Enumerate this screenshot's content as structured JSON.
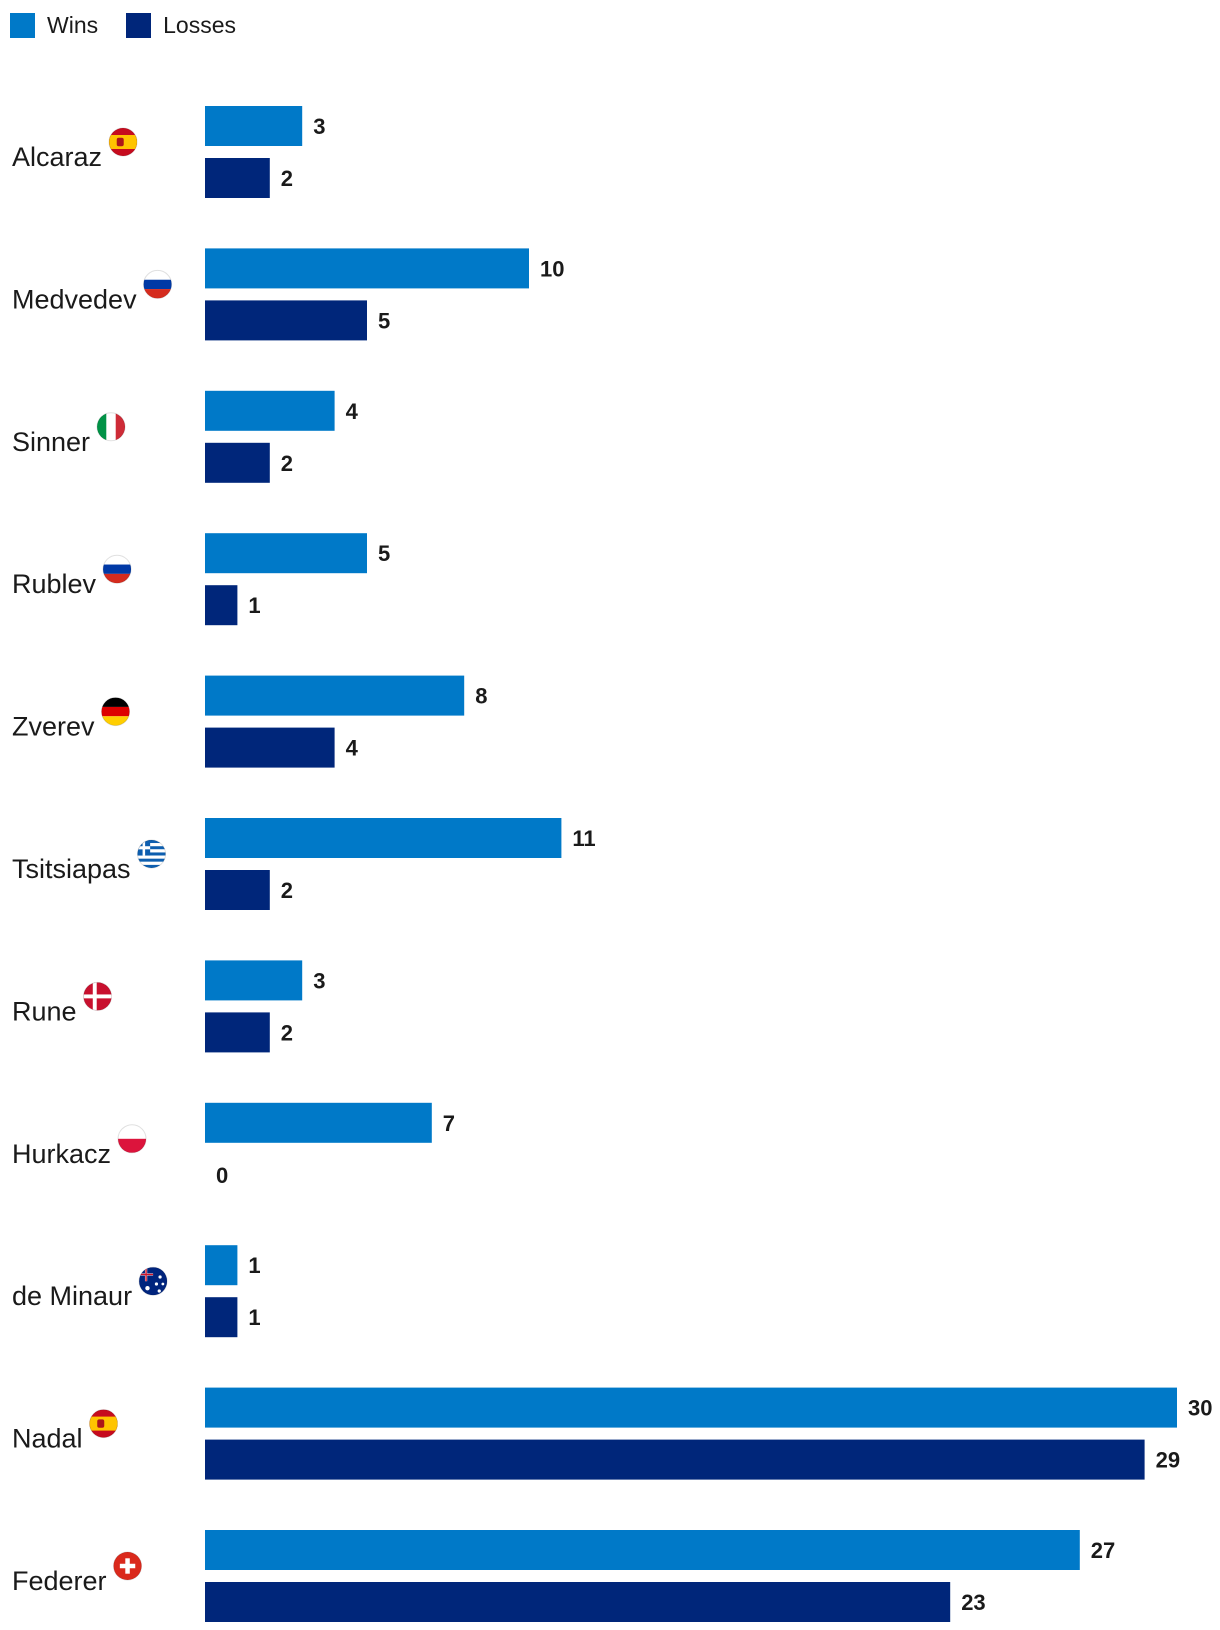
{
  "colors": {
    "wins": "#0079C8",
    "losses": "#00267A"
  },
  "chart_data": {
    "type": "bar",
    "orientation": "horizontal",
    "title": "",
    "legend": [
      {
        "name": "Wins",
        "color": "#0079C8"
      },
      {
        "name": "Losses",
        "color": "#00267A"
      }
    ],
    "legend_position": "top-left",
    "categories": [
      "Alcaraz",
      "Medvedev",
      "Sinner",
      "Rublev",
      "Zverev",
      "Tsitsiapas",
      "Rune",
      "Hurkacz",
      "de Minaur",
      "Nadal",
      "Federer"
    ],
    "flags": [
      "spain-flag-icon",
      "russia-flag-icon",
      "italy-flag-icon",
      "russia-flag-icon",
      "germany-flag-icon",
      "greece-flag-icon",
      "denmark-flag-icon",
      "poland-flag-icon",
      "australia-flag-icon",
      "spain-flag-icon",
      "switzerland-flag-icon"
    ],
    "series": [
      {
        "name": "Wins",
        "values": [
          3,
          10,
          4,
          5,
          8,
          11,
          3,
          7,
          1,
          30,
          27
        ]
      },
      {
        "name": "Losses",
        "values": [
          2,
          5,
          2,
          1,
          4,
          2,
          2,
          0,
          1,
          29,
          23
        ]
      }
    ],
    "xlim": [
      0,
      30
    ],
    "grid": false
  }
}
